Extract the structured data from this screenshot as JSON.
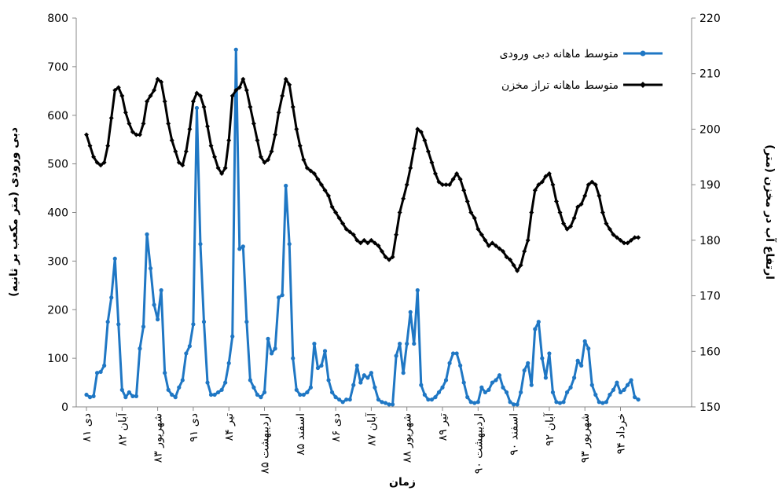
{
  "chart_data": {
    "type": "line",
    "y_label": "دبی ورودی (متر مکعب بر ثانیه)",
    "y2_label": "ارتفاع آب در مخزن (متر)",
    "x_label": "زمان",
    "categories": [
      "دی ۸۱",
      null,
      null,
      null,
      null,
      null,
      null,
      null,
      null,
      null,
      "آبان ۸۲",
      null,
      null,
      null,
      null,
      null,
      null,
      null,
      null,
      null,
      "شهریور ۸۳",
      null,
      null,
      null,
      null,
      null,
      null,
      null,
      null,
      null,
      "دی ۹۱",
      null,
      null,
      null,
      null,
      null,
      null,
      null,
      null,
      null,
      "تیر ۸۴",
      null,
      null,
      null,
      null,
      null,
      null,
      null,
      null,
      null,
      "اردیبهشت ۸۵",
      null,
      null,
      null,
      null,
      null,
      null,
      null,
      null,
      null,
      "اسفند ۸۵",
      null,
      null,
      null,
      null,
      null,
      null,
      null,
      null,
      null,
      "دی ۸۶",
      null,
      null,
      null,
      null,
      null,
      null,
      null,
      null,
      null,
      "آبان ۸۷",
      null,
      null,
      null,
      null,
      null,
      null,
      null,
      null,
      null,
      "شهریور ۸۸",
      null,
      null,
      null,
      null,
      null,
      null,
      null,
      null,
      null,
      "تیر ۸۹",
      null,
      null,
      null,
      null,
      null,
      null,
      null,
      null,
      null,
      "اردیبهشت ۹۰",
      null,
      null,
      null,
      null,
      null,
      null,
      null,
      null,
      null,
      "اسفند ۹۰",
      null,
      null,
      null,
      null,
      null,
      null,
      null,
      null,
      null,
      "آبان ۹۲",
      null,
      null,
      null,
      null,
      null,
      null,
      null,
      null,
      null,
      "شهریور ۹۳",
      null,
      null,
      null,
      null,
      null,
      null,
      null,
      null,
      null,
      "خرداد ۹۴",
      null,
      null,
      null,
      null,
      null
    ],
    "series": [
      {
        "name": "متوسط ماهانه دبی ورودی",
        "color": "#1f77c4",
        "marker": "circle",
        "values": [
          25,
          20,
          22,
          70,
          72,
          85,
          175,
          225,
          305,
          170,
          35,
          20,
          30,
          22,
          22,
          120,
          165,
          355,
          285,
          210,
          180,
          240,
          70,
          35,
          25,
          20,
          40,
          55,
          110,
          125,
          170,
          615,
          335,
          175,
          50,
          25,
          25,
          30,
          35,
          50,
          90,
          145,
          735,
          325,
          330,
          175,
          55,
          40,
          25,
          20,
          30,
          140,
          110,
          120,
          225,
          230,
          455,
          335,
          100,
          35,
          25,
          25,
          30,
          40,
          130,
          80,
          85,
          115,
          55,
          30,
          20,
          15,
          10,
          15,
          15,
          45,
          85,
          50,
          65,
          60,
          70,
          40,
          15,
          10,
          8,
          5,
          5,
          105,
          130,
          70,
          130,
          195,
          130,
          240,
          45,
          25,
          15,
          15,
          20,
          30,
          40,
          55,
          90,
          110,
          110,
          85,
          50,
          20,
          10,
          8,
          10,
          40,
          30,
          35,
          50,
          55,
          65,
          40,
          30,
          10,
          5,
          5,
          30,
          75,
          90,
          45,
          160,
          175,
          100,
          60,
          110,
          30,
          10,
          8,
          10,
          30,
          40,
          60,
          95,
          85,
          135,
          120,
          45,
          25,
          10,
          8,
          10,
          25,
          35,
          50,
          30,
          35,
          45,
          55,
          20,
          15
        ]
      },
      {
        "name": "متوسط ماهانه تراز مخزن",
        "color": "#000000",
        "marker": "diamond",
        "axis": "y2",
        "values": [
          199,
          197,
          195,
          194,
          193.5,
          194,
          197,
          202,
          207,
          207.5,
          206,
          203,
          201,
          199.5,
          199,
          199,
          201,
          205,
          206,
          207,
          209,
          208.5,
          205,
          201,
          198,
          196,
          194,
          193.5,
          196,
          200,
          205,
          206.5,
          206,
          204,
          200.5,
          197,
          195,
          193,
          192,
          193,
          198,
          206,
          207,
          207.5,
          209,
          207,
          204,
          201,
          198,
          195,
          194,
          194.5,
          196,
          199,
          203,
          206,
          209,
          208,
          204,
          200,
          197,
          194.5,
          193,
          192.5,
          192,
          191,
          190,
          189,
          188,
          186,
          185,
          184,
          183,
          182,
          181.5,
          181,
          180,
          179.5,
          180,
          179.5,
          180,
          179.5,
          179,
          178,
          177,
          176.5,
          177,
          181,
          185,
          187.5,
          190,
          193,
          196.5,
          200,
          199.5,
          198,
          196,
          194,
          192,
          190.5,
          190,
          190,
          190,
          191,
          192,
          191,
          189,
          187,
          185,
          184,
          182,
          181,
          180,
          179,
          179.5,
          179,
          178.5,
          178,
          177,
          176.5,
          175.5,
          174.5,
          175.5,
          178,
          180,
          185,
          189,
          190,
          190.5,
          191.5,
          192,
          190,
          187,
          185,
          183,
          182,
          182.5,
          184,
          186,
          186.5,
          188,
          190,
          190.5,
          190,
          188,
          185,
          183,
          182,
          181,
          180.5,
          180,
          179.5,
          179.5,
          180,
          180.5,
          180.5
        ]
      }
    ],
    "ylim": [
      0,
      800
    ],
    "yticks": [
      0,
      100,
      200,
      300,
      400,
      500,
      600,
      700,
      800
    ],
    "y2lim": [
      150,
      220
    ],
    "y2ticks": [
      150,
      160,
      170,
      180,
      190,
      200,
      210,
      220
    ],
    "legend": "top-right"
  }
}
